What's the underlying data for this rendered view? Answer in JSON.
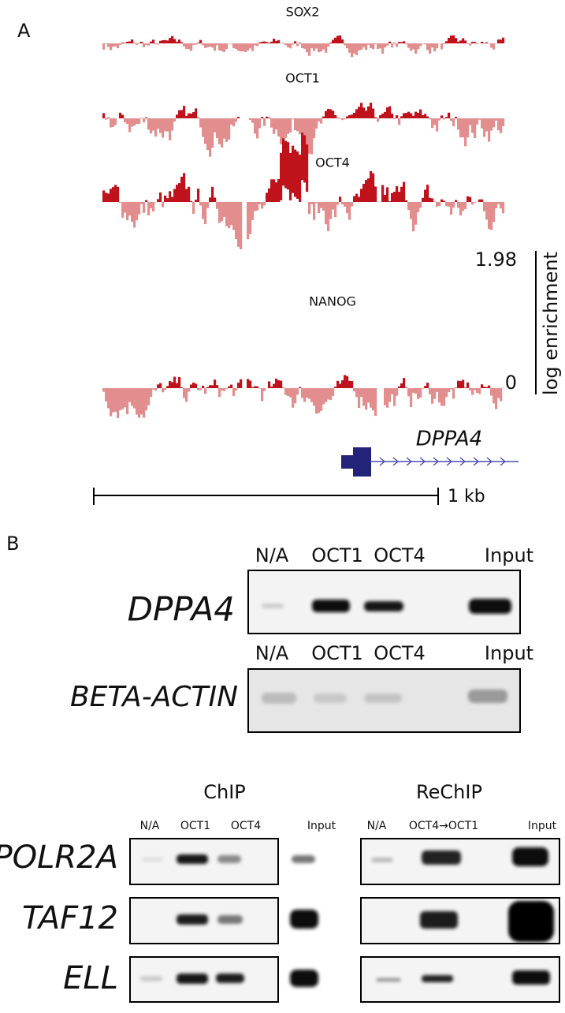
{
  "panel_a": {
    "label": "A",
    "tracks": [
      "SOX2",
      "OCT1",
      "OCT4",
      "NANOG"
    ],
    "scale": {
      "max": "1.98",
      "min": "0",
      "label": "log enrichment"
    },
    "gene": "DPPA4",
    "scale_bar": "1 kb"
  },
  "panel_b": {
    "label": "B",
    "blots": [
      {
        "gene": "DPPA4",
        "lanes": [
          "N/A",
          "OCT1",
          "OCT4",
          "Input"
        ]
      },
      {
        "gene": "BETA-ACTIN",
        "lanes": [
          "N/A",
          "OCT1",
          "OCT4",
          "Input"
        ]
      }
    ],
    "chip": {
      "title": "ChIP",
      "lanes": [
        "N/A",
        "OCT1",
        "OCT4",
        "Input"
      ]
    },
    "rechip": {
      "title": "ReChIP",
      "lanes": [
        "N/A",
        "OCT4→OCT1",
        "Input"
      ]
    },
    "genes": [
      "POLR2A",
      "TAF12",
      "ELL"
    ]
  }
}
